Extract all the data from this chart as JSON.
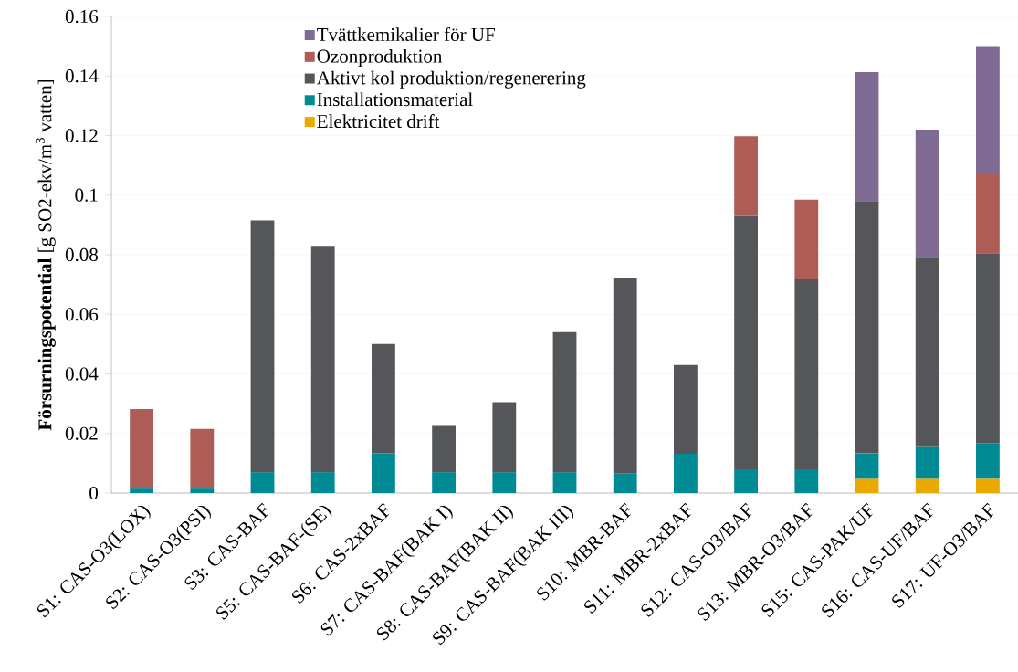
{
  "chart_data": {
    "type": "bar",
    "stacked": true,
    "ylabel": "**Försurningspotential** [g SO2-ekv/m$^{3}$ vatten]",
    "categories": [
      "S1: CAS-O3(LOX)",
      "S2: CAS-O3(PSI)",
      "S3: CAS-BAF",
      "S5: CAS-BAF-(SE)",
      "S6: CAS-2xBAF",
      "S7: CAS-BAF(BAK I)",
      "S8: CAS-BAF(BAK II)",
      "S9: CAS-BAF(BAK III)",
      "S10: MBR-BAF",
      "S11: MBR-2xBAF",
      "S12: CAS-O3/BAF",
      "S13: MBR-O3/BAF",
      "S15: CAS-PAK/UF",
      "S16: CAS-UF/BAF",
      "S17: UF-O3/BAF"
    ],
    "series": [
      {
        "name": "Elektricitet drift",
        "color": "#eaa900",
        "values": [
          null,
          null,
          null,
          null,
          null,
          null,
          null,
          null,
          null,
          null,
          null,
          null,
          0.0048,
          0.0048,
          0.0048
        ]
      },
      {
        "name": "Installationsmaterial",
        "color": "#008a94",
        "values": [
          0.0015,
          0.0015,
          0.007,
          0.007,
          0.0133,
          0.007,
          0.007,
          0.007,
          0.0065,
          0.0132,
          0.008,
          0.008,
          0.0085,
          0.0107,
          0.012
        ]
      },
      {
        "name": "Aktivt kol produktion/regenerering",
        "color": "#555659",
        "values": [
          null,
          null,
          0.0845,
          0.076,
          0.0367,
          0.0155,
          0.0235,
          0.047,
          0.0655,
          0.0298,
          0.085,
          0.0637,
          0.0847,
          0.0635,
          0.0637
        ]
      },
      {
        "name": "Ozonproduktion",
        "color": "#ad5d56",
        "values": [
          0.0267,
          0.02,
          null,
          null,
          null,
          null,
          null,
          null,
          null,
          null,
          0.0268,
          0.0268,
          null,
          null,
          0.0265
        ]
      },
      {
        "name": "Tvättkemikalier för UF",
        "color": "#7f6a93",
        "values": [
          null,
          null,
          null,
          null,
          null,
          null,
          null,
          null,
          null,
          null,
          null,
          null,
          0.0433,
          0.043,
          0.043
        ]
      }
    ],
    "ylim": [
      0,
      0.16
    ],
    "yticks": [
      0,
      0.02,
      0.04,
      0.06,
      0.08,
      0.1,
      0.12,
      0.14,
      0.16
    ],
    "grid": "y",
    "legend": "top"
  }
}
